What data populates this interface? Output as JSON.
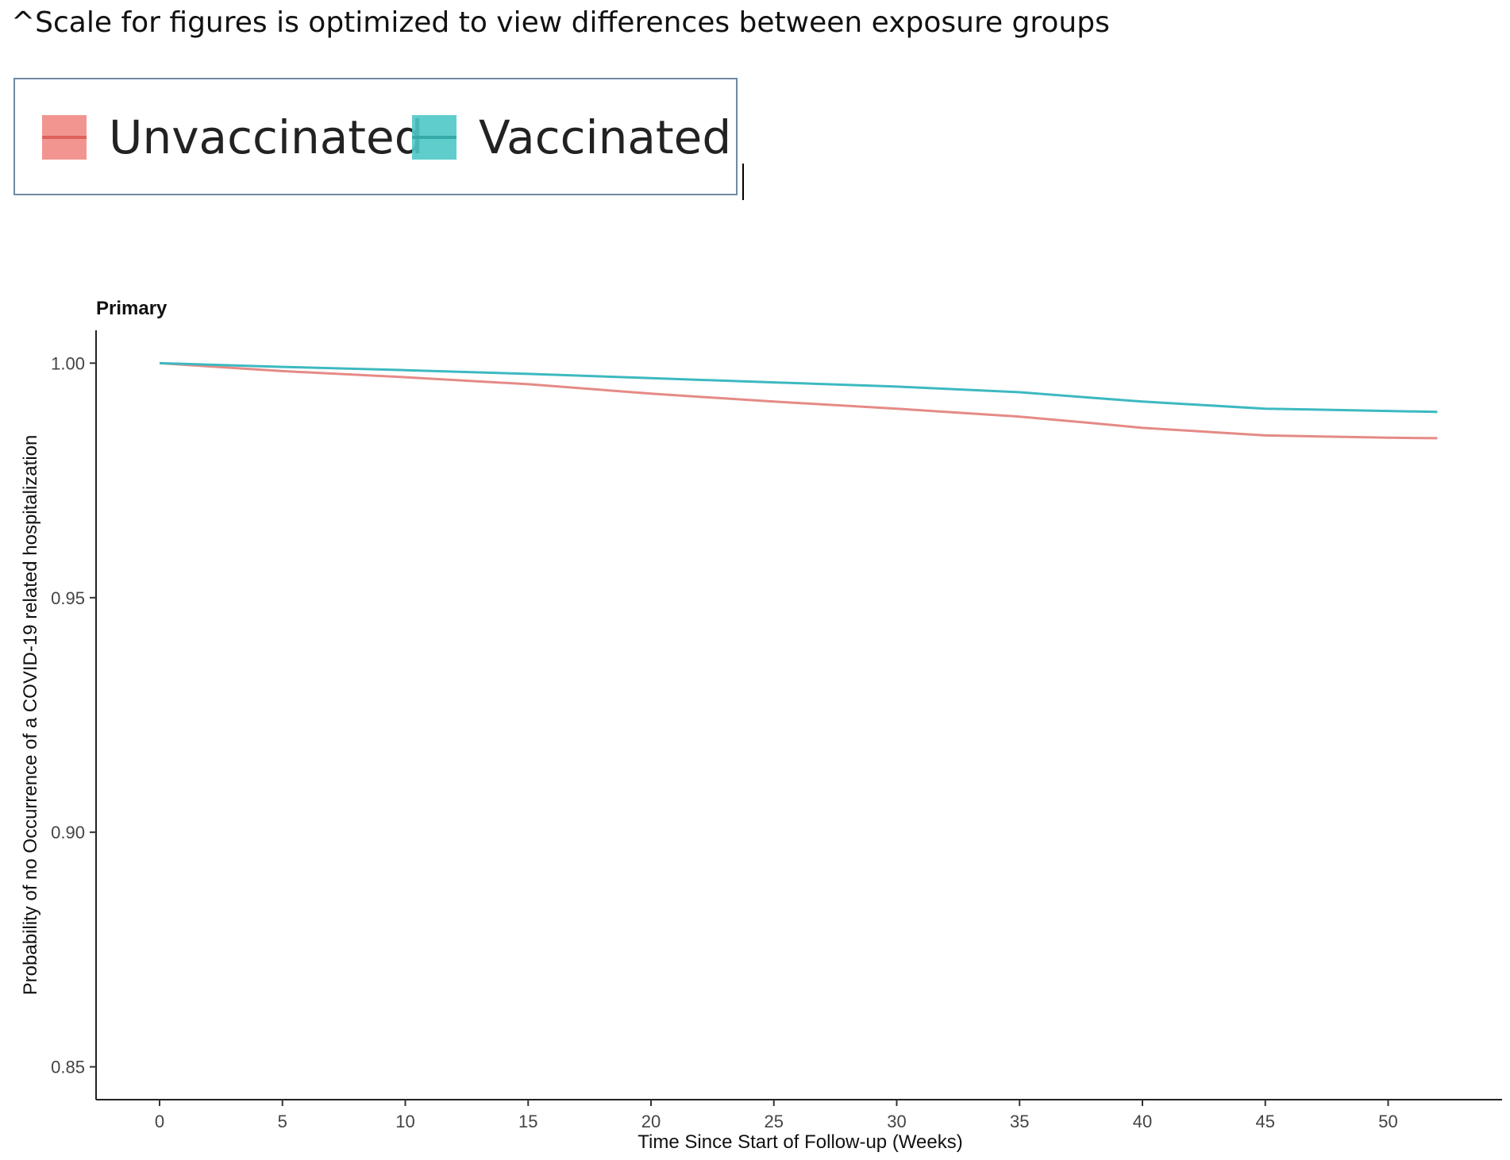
{
  "note": "^Scale for figures is optimized to view differences between exposure groups",
  "legend": {
    "items": [
      {
        "label": "Unvaccinated",
        "color": "#F0837E"
      },
      {
        "label": "Vaccinated",
        "color": "#4FC8C8"
      }
    ]
  },
  "chart_data": {
    "type": "line",
    "title": "Primary",
    "xlabel": "Time Since Start of Follow-up (Weeks)",
    "ylabel": "Probability of no Occurrence of a COVID-19 related hospitalization",
    "xlim": [
      -2.5,
      55
    ],
    "ylim": [
      0.843,
      1.007
    ],
    "xticks": [
      0,
      5,
      10,
      15,
      20,
      25,
      30,
      35,
      40,
      45,
      50
    ],
    "yticks": [
      0.85,
      0.9,
      0.95,
      1.0
    ],
    "ytick_labels": [
      "0.85",
      "0.90",
      "0.95",
      "1.00"
    ],
    "grid": false,
    "series": [
      {
        "name": "Unvaccinated",
        "color": "#E58A86",
        "x": [
          0,
          5,
          10,
          15,
          20,
          25,
          30,
          35,
          38,
          40,
          45,
          50,
          52
        ],
        "y": [
          1.0,
          0.9983,
          0.997,
          0.9955,
          0.9935,
          0.9918,
          0.9903,
          0.9886,
          0.9872,
          0.9862,
          0.9846,
          0.9841,
          0.984
        ]
      },
      {
        "name": "Vaccinated",
        "color": "#3DB9C0",
        "x": [
          0,
          5,
          10,
          15,
          20,
          25,
          30,
          35,
          38,
          40,
          45,
          50,
          52
        ],
        "y": [
          1.0,
          0.9992,
          0.9985,
          0.9977,
          0.9968,
          0.9959,
          0.995,
          0.9938,
          0.9926,
          0.9918,
          0.9903,
          0.9898,
          0.9896
        ]
      }
    ]
  }
}
